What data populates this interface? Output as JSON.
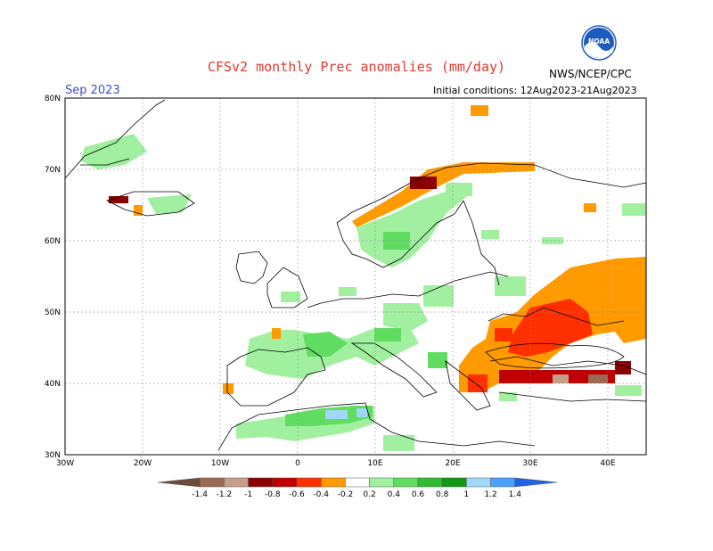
{
  "title": "CFSv2 monthly Prec anomalies (mm/day)",
  "month": "Sep 2023",
  "initial_conditions": "Initial conditions: 12Aug2023-21Aug2023",
  "organization": "NWS/NCEP/CPC",
  "logo_icon": "noaa-logo-icon",
  "lat_labels": [
    "80N",
    "70N",
    "60N",
    "50N",
    "40N",
    "30N"
  ],
  "lon_labels": [
    "30W",
    "20W",
    "10W",
    "0",
    "10E",
    "20E",
    "30E",
    "40E"
  ],
  "colorbar": {
    "labels": [
      "-1.4",
      "-1.2",
      "-1",
      "-0.8",
      "-0.6",
      "-0.4",
      "-0.2",
      "0.2",
      "0.4",
      "0.6",
      "0.8",
      "1",
      "1.2",
      "1.4"
    ],
    "colors": [
      "#6e4a3a",
      "#9b6a55",
      "#c79d8b",
      "#8b0000",
      "#c00000",
      "#ff3000",
      "#ff9a00",
      "#ffffff",
      "#a0f0a0",
      "#60dd60",
      "#30bb30",
      "#119911",
      "#a0d8f8",
      "#4aa0ff",
      "#1e64e6"
    ]
  }
}
